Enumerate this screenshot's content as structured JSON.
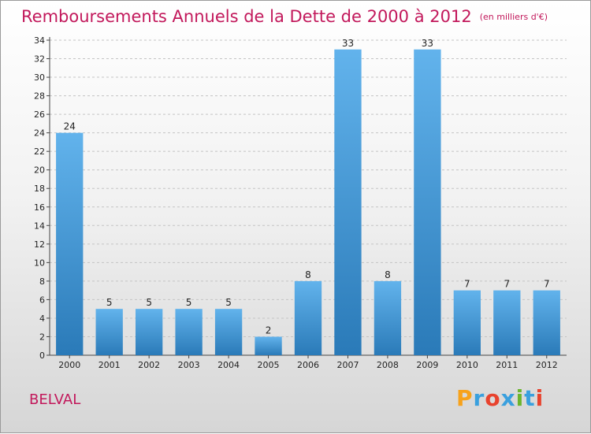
{
  "header": {
    "title": "Remboursements Annuels de la Dette de 2000 à 2012",
    "subtitle": "(en milliers d'€)"
  },
  "footer": {
    "commune": "BELVAL",
    "logo": {
      "letters": [
        "P",
        "r",
        "o",
        "x",
        "i",
        "t",
        "i"
      ],
      "colors": [
        "#f7a21b",
        "#3aa0de",
        "#e8432e",
        "#3aa0de",
        "#6cb52d",
        "#3aa0de",
        "#e8432e"
      ]
    }
  },
  "chart_data": {
    "type": "bar",
    "categories": [
      "2000",
      "2001",
      "2002",
      "2003",
      "2004",
      "2005",
      "2006",
      "2007",
      "2008",
      "2009",
      "2010",
      "2011",
      "2012"
    ],
    "values": [
      24,
      5,
      5,
      5,
      5,
      2,
      8,
      33,
      8,
      33,
      7,
      7,
      7
    ],
    "value_labels": [
      "24",
      "5",
      "5",
      "5",
      "5",
      "2",
      "8",
      "33",
      "8",
      "33",
      "7",
      "7",
      "7"
    ],
    "y_ticks": [
      "0",
      "2",
      "4",
      "6",
      "8",
      "10",
      "12",
      "14",
      "16",
      "18",
      "20",
      "22",
      "24",
      "26",
      "28",
      "30",
      "32",
      "34"
    ],
    "ylim": [
      0,
      34
    ],
    "grid": "horizontal dashed",
    "bar_color_top": "#62b3ec",
    "bar_color_bottom": "#2a7ab8"
  }
}
